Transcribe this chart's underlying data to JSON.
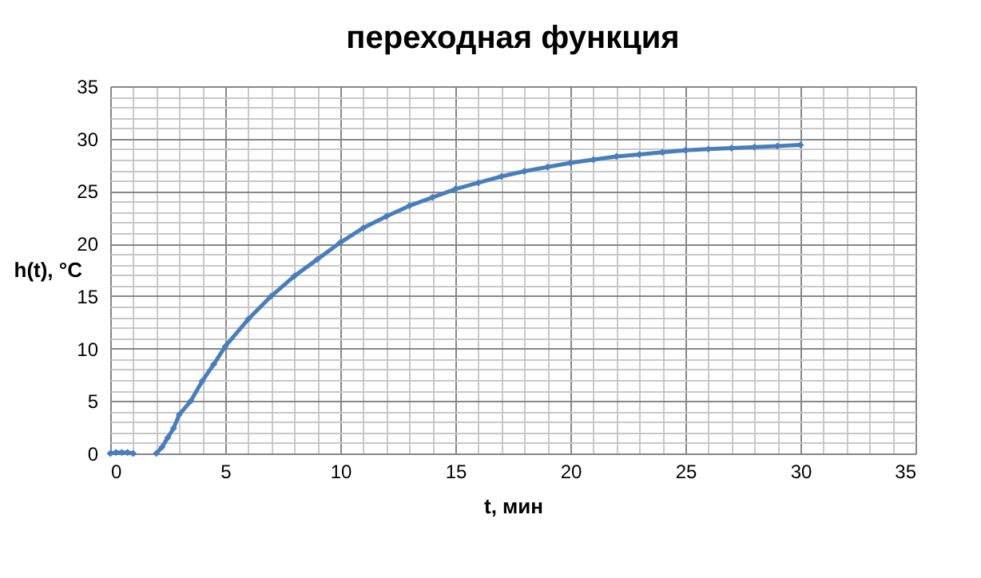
{
  "chart_data": {
    "type": "line",
    "title": "переходная функция",
    "xlabel": "t, мин",
    "ylabel": "h(t), °C",
    "series": [
      {
        "color": "#4a7ebb",
        "x": [
          2,
          2.25,
          2.5,
          2.75,
          3,
          3.5,
          4,
          4.5,
          5,
          6,
          7,
          8,
          9,
          10,
          11,
          12,
          13,
          14,
          15,
          16,
          17,
          18,
          19,
          20,
          21,
          22,
          23,
          24,
          25,
          26,
          27,
          28,
          29,
          30
        ],
        "values": [
          0,
          0.6,
          1.5,
          2.4,
          3.7,
          5,
          6.9,
          8.5,
          10.2,
          12.8,
          15,
          16.9,
          18.5,
          20.1,
          21.5,
          22.6,
          23.6,
          24.4,
          25.2,
          25.8,
          26.4,
          26.9,
          27.3,
          27.7,
          28.0,
          28.3,
          28.5,
          28.7,
          28.9,
          29.0,
          29.1,
          29.2,
          29.3,
          29.4
        ]
      },
      {
        "color": "#4a7ebb",
        "x": [
          0,
          0.25,
          0.5,
          0.75,
          1
        ],
        "values": [
          0,
          0.1,
          0.1,
          0.1,
          0
        ]
      }
    ],
    "xlim": [
      0,
      35
    ],
    "ylim": [
      0,
      35
    ],
    "xticks": [
      0,
      {
        "value": 1,
        "label": null
      },
      {
        "value": 2,
        "label": null
      },
      {
        "value": 3,
        "label": null
      },
      {
        "value": 4,
        "label": null
      },
      5,
      {
        "value": 6,
        "label": null
      },
      {
        "value": 7,
        "label": null
      },
      {
        "value": 8,
        "label": null
      },
      {
        "value": 9,
        "label": null
      },
      10,
      {
        "value": 11,
        "label": null
      },
      {
        "value": 12,
        "label": null
      },
      {
        "value": 13,
        "label": null
      },
      {
        "value": 14,
        "label": null
      },
      15,
      {
        "value": 16,
        "label": null
      },
      {
        "value": 17,
        "label": null
      },
      {
        "value": 18,
        "label": null
      },
      {
        "value": 19,
        "label": null
      },
      20,
      {
        "value": 21,
        "label": null
      },
      {
        "value": 22,
        "label": null
      },
      {
        "value": 23,
        "label": null
      },
      {
        "value": 24,
        "label": null
      },
      25,
      {
        "value": 26,
        "label": null
      },
      {
        "value": 27,
        "label": null
      },
      {
        "value": 28,
        "label": null
      },
      {
        "value": 29,
        "label": null
      },
      30,
      {
        "value": 31,
        "label": null
      },
      {
        "value": 32,
        "label": null
      },
      {
        "value": 33,
        "label": null
      },
      {
        "value": 34,
        "label": null
      },
      35
    ],
    "yticks": [
      0,
      {
        "value": 1,
        "label": null
      },
      {
        "value": 2,
        "label": null
      },
      {
        "value": 3,
        "label": null
      },
      {
        "value": 4,
        "label": null
      },
      5,
      {
        "value": 6,
        "label": null
      },
      {
        "value": 7,
        "label": null
      },
      {
        "value": 8,
        "label": null
      },
      {
        "value": 9,
        "label": null
      },
      10,
      {
        "value": 11,
        "label": null
      },
      {
        "value": 12,
        "label": null
      },
      {
        "value": 13,
        "label": null
      },
      {
        "value": 14,
        "label": null
      },
      15,
      {
        "value": 16,
        "label": null
      },
      {
        "value": 17,
        "label": null
      },
      {
        "value": 18,
        "label": null
      },
      {
        "value": 19,
        "label": null
      },
      20,
      {
        "value": 21,
        "label": null
      },
      {
        "value": 22,
        "label": null
      },
      {
        "value": 23,
        "label": null
      },
      {
        "value": 24,
        "label": null
      },
      25,
      {
        "value": 26,
        "label": null
      },
      {
        "value": 27,
        "label": null
      },
      {
        "value": 28,
        "label": null
      },
      {
        "value": 29,
        "label": null
      },
      30,
      {
        "value": 31,
        "label": null
      },
      {
        "value": 32,
        "label": null
      },
      {
        "value": 33,
        "label": null
      },
      {
        "value": 34,
        "label": null
      },
      35
    ],
    "grid": true,
    "marker": "diamond",
    "line_style": "solid"
  }
}
